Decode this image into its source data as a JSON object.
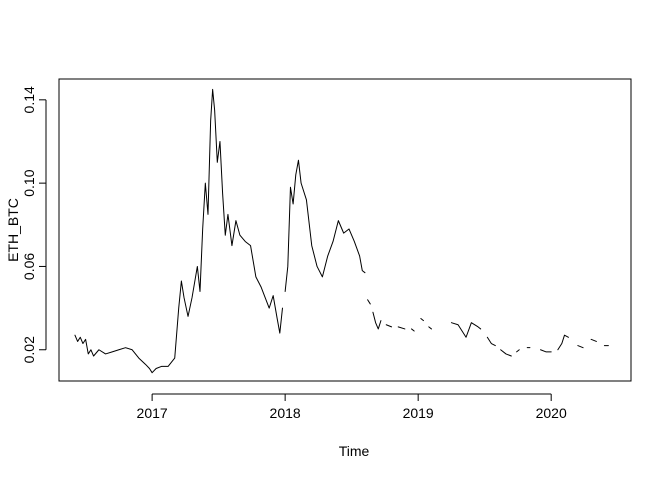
{
  "chart_data": {
    "type": "line",
    "xlabel": "Time",
    "ylabel": "ETH_BTC",
    "xlim": [
      2016.3,
      2020.6
    ],
    "ylim": [
      0.005,
      0.15
    ],
    "x_ticks": [
      2017,
      2018,
      2019,
      2020
    ],
    "x_tick_labels": [
      "2017",
      "2018",
      "2019",
      "2020"
    ],
    "y_ticks": [
      0.02,
      0.06,
      0.1,
      0.14
    ],
    "y_tick_labels": [
      "0.02",
      "0.06",
      "0.10",
      "0.14"
    ],
    "grid": false,
    "line_color": "#000000",
    "series": [
      {
        "segments": [
          [
            [
              2016.42,
              0.027
            ],
            [
              2016.44,
              0.024
            ],
            [
              2016.46,
              0.026
            ],
            [
              2016.48,
              0.023
            ],
            [
              2016.5,
              0.025
            ],
            [
              2016.52,
              0.018
            ],
            [
              2016.54,
              0.02
            ],
            [
              2016.56,
              0.017
            ],
            [
              2016.6,
              0.02
            ],
            [
              2016.65,
              0.018
            ],
            [
              2016.7,
              0.019
            ],
            [
              2016.75,
              0.02
            ],
            [
              2016.8,
              0.021
            ],
            [
              2016.85,
              0.02
            ],
            [
              2016.9,
              0.016
            ],
            [
              2016.95,
              0.013
            ],
            [
              2016.98,
              0.011
            ],
            [
              2017.0,
              0.009
            ],
            [
              2017.03,
              0.011
            ],
            [
              2017.07,
              0.012
            ],
            [
              2017.12,
              0.012
            ],
            [
              2017.17,
              0.016
            ],
            [
              2017.2,
              0.04
            ],
            [
              2017.22,
              0.053
            ],
            [
              2017.24,
              0.045
            ],
            [
              2017.27,
              0.036
            ],
            [
              2017.3,
              0.045
            ],
            [
              2017.34,
              0.06
            ],
            [
              2017.36,
              0.048
            ],
            [
              2017.38,
              0.078
            ],
            [
              2017.4,
              0.1
            ],
            [
              2017.42,
              0.085
            ],
            [
              2017.44,
              0.13
            ],
            [
              2017.455,
              0.145
            ],
            [
              2017.47,
              0.135
            ],
            [
              2017.49,
              0.11
            ],
            [
              2017.51,
              0.12
            ],
            [
              2017.53,
              0.095
            ],
            [
              2017.55,
              0.075
            ],
            [
              2017.57,
              0.085
            ],
            [
              2017.6,
              0.07
            ],
            [
              2017.63,
              0.082
            ],
            [
              2017.66,
              0.075
            ],
            [
              2017.7,
              0.072
            ],
            [
              2017.74,
              0.07
            ],
            [
              2017.78,
              0.055
            ],
            [
              2017.82,
              0.05
            ],
            [
              2017.85,
              0.045
            ],
            [
              2017.88,
              0.04
            ],
            [
              2017.91,
              0.046
            ],
            [
              2017.94,
              0.035
            ],
            [
              2017.96,
              0.028
            ],
            [
              2017.98,
              0.04
            ]
          ],
          [
            [
              2018.0,
              0.048
            ],
            [
              2018.02,
              0.06
            ],
            [
              2018.04,
              0.098
            ],
            [
              2018.06,
              0.09
            ],
            [
              2018.08,
              0.104
            ],
            [
              2018.1,
              0.111
            ],
            [
              2018.12,
              0.1
            ],
            [
              2018.16,
              0.092
            ],
            [
              2018.2,
              0.07
            ],
            [
              2018.24,
              0.06
            ],
            [
              2018.28,
              0.055
            ],
            [
              2018.32,
              0.065
            ],
            [
              2018.36,
              0.072
            ],
            [
              2018.4,
              0.082
            ],
            [
              2018.44,
              0.076
            ],
            [
              2018.48,
              0.078
            ],
            [
              2018.52,
              0.072
            ],
            [
              2018.56,
              0.065
            ],
            [
              2018.58,
              0.058
            ],
            [
              2018.6,
              0.057
            ]
          ],
          [
            [
              2018.62,
              0.044
            ],
            [
              2018.64,
              0.042
            ]
          ],
          [
            [
              2018.66,
              0.038
            ],
            [
              2018.68,
              0.033
            ],
            [
              2018.7,
              0.03
            ],
            [
              2018.72,
              0.034
            ]
          ],
          [
            [
              2018.76,
              0.032
            ],
            [
              2018.8,
              0.031
            ]
          ],
          [
            [
              2018.85,
              0.031
            ],
            [
              2018.9,
              0.03
            ]
          ],
          [
            [
              2018.95,
              0.03
            ],
            [
              2018.97,
              0.029
            ]
          ],
          [
            [
              2019.02,
              0.035
            ],
            [
              2019.04,
              0.034
            ]
          ],
          [
            [
              2019.08,
              0.031
            ],
            [
              2019.1,
              0.03
            ]
          ],
          [
            [
              2019.25,
              0.033
            ],
            [
              2019.3,
              0.032
            ],
            [
              2019.33,
              0.029
            ],
            [
              2019.36,
              0.026
            ],
            [
              2019.4,
              0.033
            ],
            [
              2019.45,
              0.031
            ],
            [
              2019.47,
              0.03
            ]
          ],
          [
            [
              2019.52,
              0.026
            ],
            [
              2019.55,
              0.023
            ],
            [
              2019.58,
              0.022
            ]
          ],
          [
            [
              2019.62,
              0.02
            ],
            [
              2019.66,
              0.018
            ],
            [
              2019.7,
              0.017
            ]
          ],
          [
            [
              2019.74,
              0.019
            ],
            [
              2019.76,
              0.02
            ]
          ],
          [
            [
              2019.82,
              0.021
            ],
            [
              2019.84,
              0.021
            ]
          ],
          [
            [
              2019.92,
              0.02
            ],
            [
              2019.96,
              0.019
            ],
            [
              2020.0,
              0.019
            ]
          ],
          [
            [
              2020.05,
              0.02
            ],
            [
              2020.08,
              0.023
            ],
            [
              2020.1,
              0.027
            ],
            [
              2020.13,
              0.026
            ]
          ],
          [
            [
              2020.2,
              0.022
            ],
            [
              2020.24,
              0.021
            ]
          ],
          [
            [
              2020.3,
              0.025
            ],
            [
              2020.34,
              0.024
            ]
          ],
          [
            [
              2020.4,
              0.022
            ],
            [
              2020.43,
              0.022
            ]
          ]
        ]
      }
    ]
  }
}
